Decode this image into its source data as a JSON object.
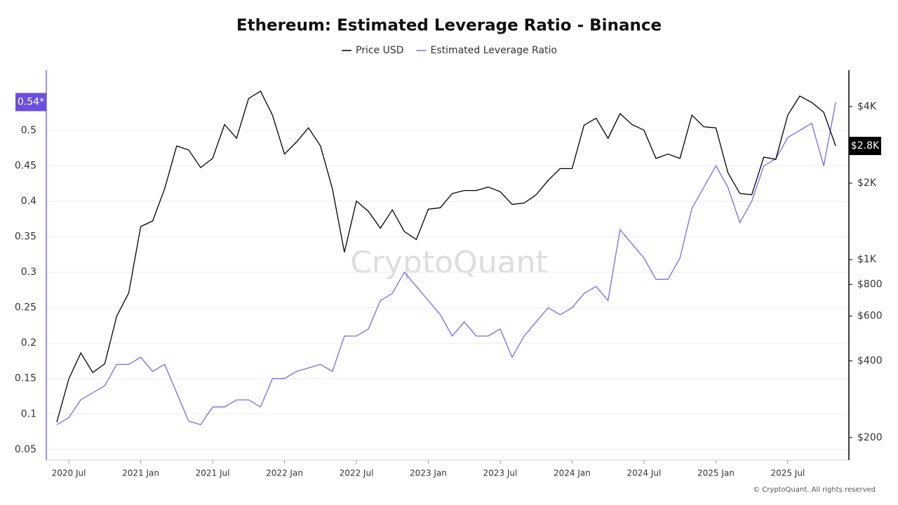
{
  "chart_data": {
    "type": "line",
    "title": "Ethereum: Estimated Leverage Ratio - Binance",
    "watermark": "CryptoQuant",
    "footer": "© CryptoQuant. All rights reserved",
    "x": [
      "2020-06",
      "2020-07",
      "2020-08",
      "2020-09",
      "2020-10",
      "2020-11",
      "2020-12",
      "2021-01",
      "2021-02",
      "2021-03",
      "2021-04",
      "2021-05",
      "2021-06",
      "2021-07",
      "2021-08",
      "2021-09",
      "2021-10",
      "2021-11",
      "2021-12",
      "2022-01",
      "2022-02",
      "2022-03",
      "2022-04",
      "2022-05",
      "2022-06",
      "2022-07",
      "2022-08",
      "2022-09",
      "2022-10",
      "2022-11",
      "2022-12",
      "2023-01",
      "2023-02",
      "2023-03",
      "2023-04",
      "2023-05",
      "2023-06",
      "2023-07",
      "2023-08",
      "2023-09",
      "2023-10",
      "2023-11",
      "2023-12",
      "2024-01",
      "2024-02",
      "2024-03",
      "2024-04",
      "2024-05",
      "2024-06",
      "2024-07",
      "2024-08",
      "2024-09",
      "2024-10",
      "2024-11",
      "2024-12",
      "2025-01",
      "2025-02",
      "2025-03",
      "2025-04",
      "2025-05",
      "2025-06",
      "2025-07",
      "2025-08",
      "2025-09",
      "2025-10",
      "2025-11"
    ],
    "xticks": [
      {
        "value": "2020-07",
        "label": "2020 Jul"
      },
      {
        "value": "2021-01",
        "label": "2021 Jan"
      },
      {
        "value": "2021-07",
        "label": "2021 Jul"
      },
      {
        "value": "2022-01",
        "label": "2022 Jan"
      },
      {
        "value": "2022-07",
        "label": "2022 Jul"
      },
      {
        "value": "2023-01",
        "label": "2023 Jan"
      },
      {
        "value": "2023-07",
        "label": "2023 Jul"
      },
      {
        "value": "2024-01",
        "label": "2024 Jan"
      },
      {
        "value": "2024-07",
        "label": "2024 Jul"
      },
      {
        "value": "2025-01",
        "label": "2025 Jan"
      },
      {
        "value": "2025-07",
        "label": "2025 Jul"
      }
    ],
    "ylim": [
      0.035,
      0.585
    ],
    "yticks": [
      0.05,
      0.1,
      0.15,
      0.2,
      0.25,
      0.3,
      0.35,
      0.4,
      0.45,
      0.5
    ],
    "y2lim": [
      163,
      5560
    ],
    "y2_log": true,
    "y2ticks": [
      {
        "value": 200,
        "label": "$200"
      },
      {
        "value": 400,
        "label": "$400"
      },
      {
        "value": 600,
        "label": "$600"
      },
      {
        "value": 800,
        "label": "$800"
      },
      {
        "value": 1000,
        "label": "$1K"
      },
      {
        "value": 2000,
        "label": "$2K"
      },
      {
        "value": 4000,
        "label": "$4K"
      }
    ],
    "grid": true,
    "series": [
      {
        "name": "Price USD",
        "color": "#000000",
        "axis": "y2",
        "last_label": "$2.8K",
        "values": [
          230,
          340,
          430,
          360,
          390,
          600,
          740,
          1350,
          1420,
          1900,
          2800,
          2700,
          2300,
          2500,
          3400,
          3000,
          4300,
          4600,
          3700,
          2600,
          2900,
          3300,
          2800,
          1900,
          1070,
          1700,
          1550,
          1330,
          1570,
          1290,
          1200,
          1580,
          1600,
          1820,
          1870,
          1870,
          1930,
          1850,
          1650,
          1670,
          1800,
          2050,
          2280,
          2280,
          3380,
          3600,
          3000,
          3750,
          3400,
          3230,
          2500,
          2600,
          2500,
          3700,
          3330,
          3300,
          2200,
          1820,
          1800,
          2530,
          2480,
          3700,
          4400,
          4150,
          3800,
          2800
        ]
      },
      {
        "name": "Estimated Leverage Ratio",
        "color": "#7b68ee",
        "axis": "y",
        "last_label": "0.54*",
        "values": [
          0.085,
          0.095,
          0.12,
          0.13,
          0.14,
          0.17,
          0.17,
          0.18,
          0.16,
          0.17,
          0.13,
          0.09,
          0.085,
          0.11,
          0.11,
          0.12,
          0.12,
          0.11,
          0.15,
          0.15,
          0.16,
          0.165,
          0.17,
          0.16,
          0.21,
          0.21,
          0.22,
          0.26,
          0.27,
          0.3,
          0.28,
          0.26,
          0.24,
          0.21,
          0.23,
          0.21,
          0.21,
          0.22,
          0.18,
          0.21,
          0.23,
          0.25,
          0.24,
          0.25,
          0.27,
          0.28,
          0.26,
          0.36,
          0.34,
          0.32,
          0.29,
          0.29,
          0.32,
          0.39,
          0.42,
          0.45,
          0.42,
          0.37,
          0.4,
          0.45,
          0.46,
          0.49,
          0.5,
          0.51,
          0.45,
          0.54
        ]
      }
    ]
  }
}
